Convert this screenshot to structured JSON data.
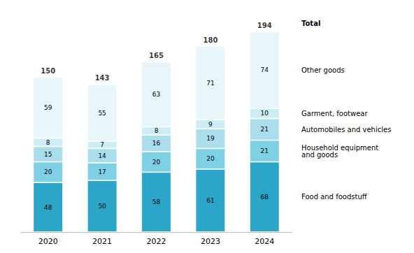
{
  "chart_data": {
    "type": "bar",
    "stacked": true,
    "data_labels": true,
    "tick_labels": "x",
    "grid": false,
    "legend": "right",
    "categories": [
      "2020",
      "2021",
      "2022",
      "2023",
      "2024"
    ],
    "series": [
      {
        "name": "Food and foodstuff",
        "color": "#2ba5c8",
        "values": [
          48,
          50,
          58,
          61,
          68
        ]
      },
      {
        "name": "Household equipment\nand goods",
        "color": "#7ed0e4",
        "values": [
          20,
          17,
          20,
          20,
          21
        ]
      },
      {
        "name": "Automobiles and vehicles",
        "color": "#aadeec",
        "values": [
          15,
          14,
          16,
          19,
          21
        ]
      },
      {
        "name": "Garment, footwear",
        "color": "#ccedf5",
        "values": [
          8,
          7,
          8,
          9,
          10
        ]
      },
      {
        "name": "Other goods",
        "color": "#e6f6fb",
        "values": [
          59,
          55,
          63,
          71,
          74
        ]
      }
    ],
    "totals": {
      "label": "Total",
      "values": [
        150,
        143,
        165,
        180,
        194
      ]
    },
    "ylim": [
      0,
      210
    ]
  }
}
